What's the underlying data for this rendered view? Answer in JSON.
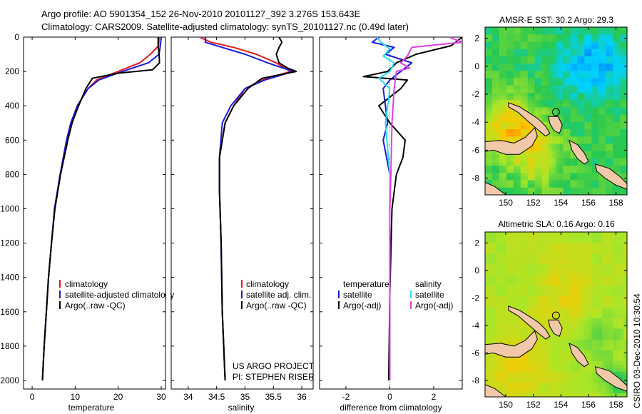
{
  "header": {
    "line1": "Argo profile: AO 5901354_152 26-Nov-2010 20101127_392 3.276S 153.643E",
    "line2": "Climatology: CARS2009. Satellite-adjusted climatology: synTS_20101127.nc (0.49d later)"
  },
  "side_text": "CSIRO 03-Dec-2010 10:30:54",
  "colors": {
    "climatology": "#e31a1c",
    "satellite": "#1a1adc",
    "argo": "#000000",
    "cyan": "#22e0ee",
    "magenta": "#e040e0"
  },
  "chart_data": [
    {
      "id": "temperature",
      "type": "line",
      "xlabel": "temperature",
      "ylabel": "",
      "xlim": [
        -2,
        31
      ],
      "ylim": [
        2050,
        0
      ],
      "xticks": [
        0,
        10,
        20,
        30
      ],
      "yticks": [
        0,
        200,
        400,
        600,
        800,
        1000,
        1200,
        1400,
        1600,
        1800,
        2000
      ],
      "legend": [
        "climatology",
        "satellite-adjusted climatology",
        "Argo(..raw -QC)"
      ],
      "series": [
        {
          "name": "climatology",
          "color": "#e31a1c",
          "d": [
            [
              0,
              29.5
            ],
            [
              50,
              29.4
            ],
            [
              100,
              27.5
            ],
            [
              150,
              25
            ],
            [
              200,
              20
            ],
            [
              250,
              15
            ],
            [
              300,
              13
            ],
            [
              400,
              10.5
            ],
            [
              500,
              9
            ],
            [
              600,
              8
            ],
            [
              800,
              6.5
            ],
            [
              1000,
              5.2
            ],
            [
              1200,
              4.5
            ],
            [
              1400,
              3.8
            ],
            [
              1600,
              3.3
            ],
            [
              1800,
              2.8
            ],
            [
              2000,
              2.4
            ]
          ]
        },
        {
          "name": "satellite-adjusted climatology",
          "color": "#1a1adc",
          "d": [
            [
              0,
              30
            ],
            [
              50,
              29.8
            ],
            [
              100,
              29.5
            ],
            [
              150,
              27
            ],
            [
              200,
              21
            ],
            [
              250,
              15.5
            ],
            [
              300,
              13
            ],
            [
              400,
              10.5
            ],
            [
              500,
              9
            ],
            [
              600,
              8
            ],
            [
              800,
              6.5
            ],
            [
              1000,
              5.2
            ],
            [
              1200,
              4.5
            ],
            [
              1400,
              3.8
            ],
            [
              1600,
              3.3
            ],
            [
              1800,
              2.8
            ],
            [
              2000,
              2.4
            ]
          ]
        },
        {
          "name": "Argo(..raw -QC)",
          "color": "#000000",
          "d": [
            [
              0,
              29.3
            ],
            [
              50,
              29.3
            ],
            [
              100,
              29.5
            ],
            [
              150,
              29.6
            ],
            [
              190,
              28
            ],
            [
              210,
              20
            ],
            [
              240,
              14
            ],
            [
              300,
              12.5
            ],
            [
              400,
              10.8
            ],
            [
              500,
              9.3
            ],
            [
              600,
              8.3
            ],
            [
              800,
              6.6
            ],
            [
              1000,
              5.3
            ],
            [
              1200,
              4.5
            ],
            [
              1400,
              3.8
            ],
            [
              1600,
              3.3
            ],
            [
              1800,
              2.8
            ],
            [
              2000,
              2.4
            ]
          ]
        }
      ]
    },
    {
      "id": "salinity",
      "type": "line",
      "xlabel": "salinity",
      "ylabel": "",
      "xlim": [
        33.7,
        36.2
      ],
      "ylim": [
        2050,
        0
      ],
      "xticks": [
        34,
        34.5,
        35,
        35.5,
        36
      ],
      "legend": [
        "climatology",
        "satellite adj. clim.",
        "Argo(..raw -QC)"
      ],
      "annotation": [
        "US ARGO PROJECT",
        "PI: STEPHEN RISER"
      ],
      "series": [
        {
          "name": "climatology",
          "color": "#e31a1c",
          "d": [
            [
              0,
              34.2
            ],
            [
              30,
              34.4
            ],
            [
              60,
              34.8
            ],
            [
              100,
              35.2
            ],
            [
              150,
              35.55
            ],
            [
              200,
              35.8
            ],
            [
              250,
              35.3
            ],
            [
              300,
              35.0
            ],
            [
              400,
              34.8
            ],
            [
              500,
              34.65
            ],
            [
              700,
              34.55
            ],
            [
              900,
              34.55
            ],
            [
              1200,
              34.58
            ],
            [
              1600,
              34.6
            ],
            [
              2000,
              34.65
            ]
          ]
        },
        {
          "name": "satellite adj. clim.",
          "color": "#1a1adc",
          "d": [
            [
              0,
              34.3
            ],
            [
              30,
              34.3
            ],
            [
              60,
              34.6
            ],
            [
              100,
              35.0
            ],
            [
              150,
              35.4
            ],
            [
              200,
              35.85
            ],
            [
              250,
              35.35
            ],
            [
              300,
              35.0
            ],
            [
              400,
              34.75
            ],
            [
              500,
              34.6
            ],
            [
              700,
              34.55
            ],
            [
              900,
              34.55
            ],
            [
              1200,
              34.58
            ],
            [
              1600,
              34.6
            ],
            [
              2000,
              34.65
            ]
          ]
        },
        {
          "name": "Argo(..raw -QC)",
          "color": "#000000",
          "d": [
            [
              0,
              35.6
            ],
            [
              30,
              35.65
            ],
            [
              60,
              35.6
            ],
            [
              100,
              35.55
            ],
            [
              150,
              35.6
            ],
            [
              180,
              35.75
            ],
            [
              200,
              35.9
            ],
            [
              240,
              35.3
            ],
            [
              300,
              35.05
            ],
            [
              400,
              34.8
            ],
            [
              500,
              34.65
            ],
            [
              700,
              34.55
            ],
            [
              900,
              34.55
            ],
            [
              1200,
              34.58
            ],
            [
              1600,
              34.6
            ],
            [
              2000,
              34.65
            ]
          ]
        }
      ]
    },
    {
      "id": "difference",
      "type": "line",
      "xlabel": "difference from climatology",
      "ylabel": "",
      "xlim": [
        -3.2,
        3.3
      ],
      "ylim": [
        2050,
        0
      ],
      "xticks": [
        -2,
        0,
        2
      ],
      "legend_left_title": "temperature",
      "legend_left": [
        "satellite",
        "Argo(-adj)"
      ],
      "legend_right_title": "salinity",
      "legend_right": [
        "satellite",
        "Argo(-adj)"
      ],
      "series": [
        {
          "name": "temperature satellite",
          "color": "#1a1adc",
          "d": [
            [
              0,
              -0.5
            ],
            [
              30,
              -0.8
            ],
            [
              60,
              0.2
            ],
            [
              100,
              -0.2
            ],
            [
              150,
              1.0
            ],
            [
              200,
              0.5
            ],
            [
              250,
              0.0
            ],
            [
              300,
              -0.3
            ],
            [
              400,
              -0.2
            ],
            [
              500,
              -0.1
            ],
            [
              600,
              -0.3
            ],
            [
              800,
              0
            ],
            [
              1000,
              0
            ],
            [
              1500,
              0
            ],
            [
              2000,
              0
            ]
          ]
        },
        {
          "name": "temperature Argo(-adj)",
          "color": "#000000",
          "d": [
            [
              0,
              3.3
            ],
            [
              50,
              2.8
            ],
            [
              100,
              1.2
            ],
            [
              150,
              0.3
            ],
            [
              200,
              -0.1
            ],
            [
              230,
              -1.2
            ],
            [
              250,
              0.8
            ],
            [
              300,
              0.5
            ],
            [
              400,
              -0.5
            ],
            [
              500,
              0.0
            ],
            [
              600,
              0.7
            ],
            [
              700,
              0.6
            ],
            [
              800,
              0.3
            ],
            [
              1000,
              0.1
            ],
            [
              1500,
              0.0
            ],
            [
              2000,
              -0.05
            ]
          ]
        },
        {
          "name": "salinity satellite",
          "color": "#22e0ee",
          "d": [
            [
              0,
              -0.6
            ],
            [
              30,
              -0.4
            ],
            [
              70,
              0.0
            ],
            [
              110,
              -0.3
            ],
            [
              150,
              0.2
            ],
            [
              200,
              0.0
            ],
            [
              240,
              -0.5
            ],
            [
              300,
              0.0
            ],
            [
              500,
              -0.2
            ],
            [
              800,
              0
            ],
            [
              1500,
              0
            ],
            [
              2000,
              0
            ]
          ]
        },
        {
          "name": "salinity Argo(-adj)",
          "color": "#e040e0",
          "d": [
            [
              0,
              2.7
            ],
            [
              30,
              3.3
            ],
            [
              60,
              1.0
            ],
            [
              110,
              0.8
            ],
            [
              150,
              0.5
            ],
            [
              180,
              0.9
            ],
            [
              200,
              0.3
            ],
            [
              300,
              0.2
            ],
            [
              500,
              0.1
            ],
            [
              800,
              0.05
            ],
            [
              1000,
              0
            ],
            [
              1500,
              0
            ],
            [
              2000,
              0
            ]
          ]
        }
      ]
    },
    {
      "id": "sst_map",
      "type": "heatmap",
      "title": "AMSR-E SST: 30.2 Argo: 29.3",
      "xlim": [
        148.5,
        158.8
      ],
      "ylim": [
        -9.2,
        2.8
      ],
      "xticks": [
        150,
        152,
        154,
        156,
        158
      ],
      "yticks": [
        2,
        0,
        -2,
        -4,
        -6,
        -8
      ],
      "marker": {
        "lon": 153.643,
        "lat": -3.276
      }
    },
    {
      "id": "sla_map",
      "type": "heatmap",
      "title": "Altimetric SLA: 0.16 Argo: 0.16",
      "xlim": [
        148.5,
        158.8
      ],
      "ylim": [
        -9.2,
        2.8
      ],
      "xticks": [
        150,
        152,
        154,
        156,
        158
      ],
      "yticks": [
        2,
        0,
        -2,
        -4,
        -6,
        -8
      ],
      "marker": {
        "lon": 153.643,
        "lat": -3.276
      }
    }
  ]
}
